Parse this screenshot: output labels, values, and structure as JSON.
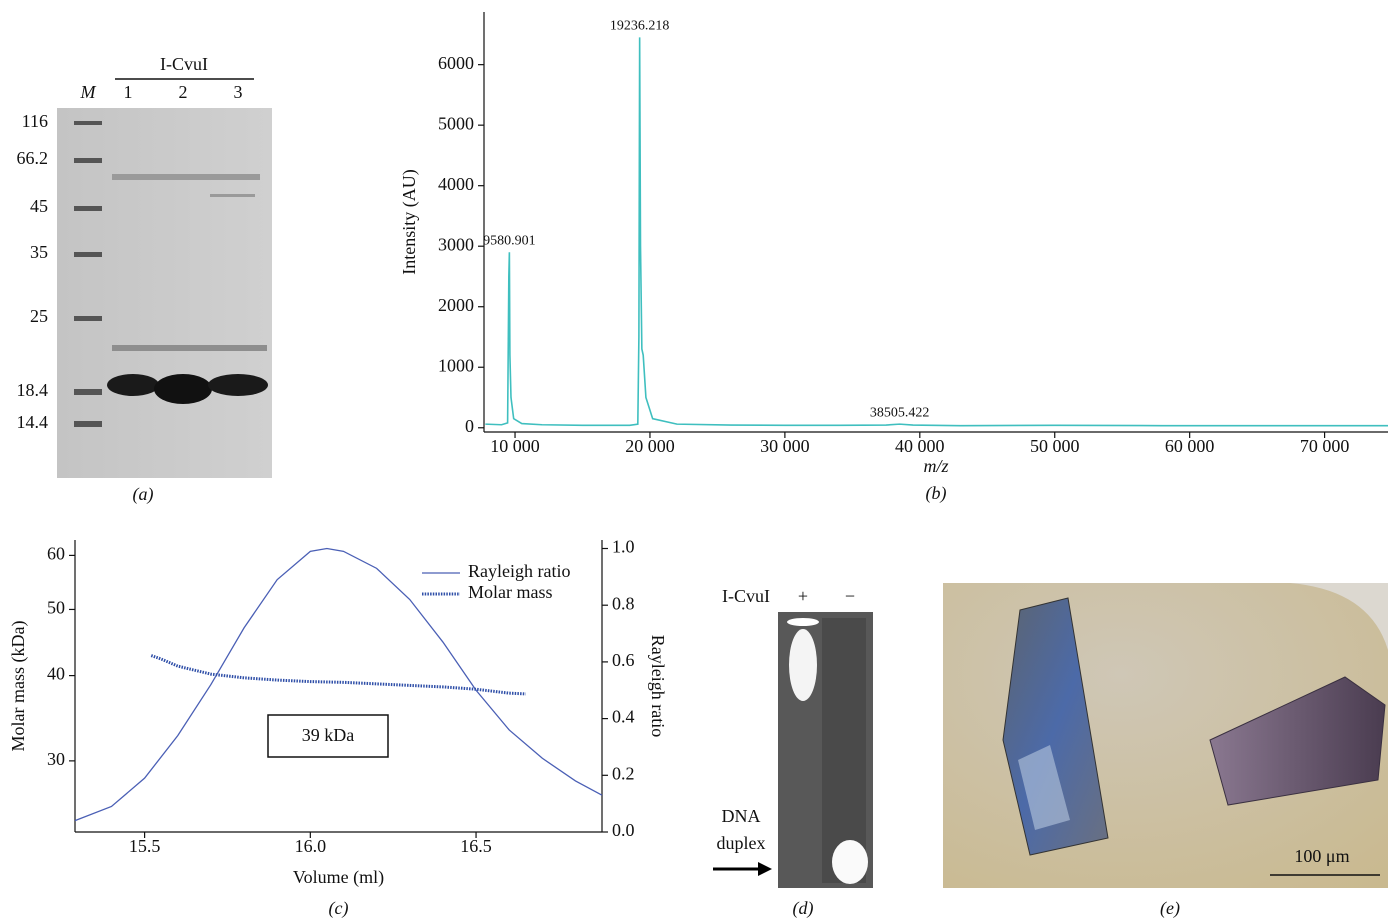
{
  "panel_a": {
    "caption": "(a)",
    "group_label": "I-CvuI",
    "lanes": [
      "M",
      "1",
      "2",
      "3"
    ],
    "markers": [
      "116",
      "66.2",
      "45",
      "35",
      "25",
      "18.4",
      "14.4"
    ]
  },
  "chart_data": [
    {
      "type": "line",
      "caption": "(b)",
      "xlabel": "m/z",
      "ylabel": "Intensity (AU)",
      "color": "#3fbfbf",
      "x": [
        7800,
        9000,
        9450,
        9540,
        9580.901,
        9620,
        9700,
        9900,
        10500,
        12000,
        15000,
        18500,
        19100,
        19180,
        19236.218,
        19300,
        19400,
        19500,
        19700,
        20200,
        22000,
        26000,
        30000,
        34000,
        37500,
        38505.422,
        39500,
        43000,
        50000,
        58000,
        66000,
        74700
      ],
      "values": [
        60,
        50,
        80,
        2500,
        2900,
        1200,
        500,
        150,
        70,
        50,
        40,
        40,
        60,
        1500,
        6450,
        3000,
        1300,
        1200,
        500,
        150,
        60,
        45,
        40,
        40,
        45,
        60,
        45,
        35,
        40,
        35,
        35,
        35
      ],
      "xlim": [
        7700,
        74700
      ],
      "ylim": [
        -70,
        6870
      ],
      "xticks": [
        {
          "value": 10000,
          "label": "10 000"
        },
        {
          "value": 20000,
          "label": "20 000"
        },
        {
          "value": 30000,
          "label": "30 000"
        },
        {
          "value": 40000,
          "label": "40 000"
        },
        {
          "value": 50000,
          "label": "50 000"
        },
        {
          "value": 60000,
          "label": "60 000"
        },
        {
          "value": 70000,
          "label": "70 000"
        }
      ],
      "yticks": [
        0,
        1000,
        2000,
        3000,
        4000,
        5000,
        6000
      ]
    },
    {
      "type": "line",
      "caption": "(c)",
      "xlabel": "Volume (ml)",
      "ylabel": "Molar mass (kDa)",
      "y2label": "Rayleigh ratio",
      "legend": "top-right",
      "ylog": true,
      "annotation": "39 kDa",
      "xlim": [
        15.29,
        16.88
      ],
      "ylim": [
        23.6,
        63.2
      ],
      "y2lim": [
        0,
        1.03
      ],
      "xticks": [
        15.5,
        {
          "value": 16,
          "label": "16.0"
        },
        16.5
      ],
      "yticks": [
        30,
        40,
        50,
        60
      ],
      "y2ticks": [
        {
          "value": 0,
          "label": "0.0"
        },
        0.2,
        0.4,
        0.6,
        0.8,
        {
          "value": 1,
          "label": "1.0"
        }
      ],
      "series": [
        {
          "name": "Rayleigh ratio",
          "color": "#4a5fb5",
          "style": "solid",
          "axis": "y2",
          "x": [
            15.29,
            15.4,
            15.5,
            15.6,
            15.7,
            15.8,
            15.9,
            16.0,
            16.05,
            16.1,
            16.2,
            16.3,
            16.4,
            16.5,
            16.6,
            16.7,
            16.8,
            16.88
          ],
          "values": [
            0.04,
            0.09,
            0.19,
            0.34,
            0.52,
            0.72,
            0.89,
            0.99,
            1.0,
            0.99,
            0.93,
            0.82,
            0.67,
            0.5,
            0.36,
            0.26,
            0.18,
            0.13
          ]
        },
        {
          "name": "Molar mass",
          "color": "#2f4fa8",
          "style": "dotted",
          "x": [
            15.52,
            15.55,
            15.6,
            15.7,
            15.8,
            15.9,
            16.0,
            16.1,
            16.2,
            16.3,
            16.4,
            16.5,
            16.6,
            16.65
          ],
          "values": [
            42.8,
            42.3,
            41.3,
            40.2,
            39.7,
            39.4,
            39.2,
            39.1,
            38.9,
            38.7,
            38.5,
            38.2,
            37.7,
            37.6
          ]
        }
      ]
    }
  ],
  "panel_d": {
    "caption": "(d)",
    "row_label": "I-CvuI",
    "lanes": [
      "+",
      "−"
    ],
    "arrow_label": [
      "DNA",
      "duplex"
    ]
  },
  "panel_e": {
    "caption": "(e)",
    "scale_bar": "100 μm"
  }
}
